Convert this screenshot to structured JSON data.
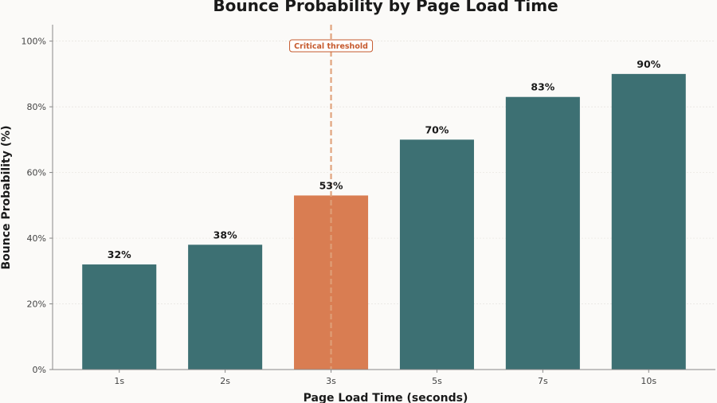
{
  "chart_data": {
    "type": "bar",
    "title": "Bounce Probability by Page Load Time",
    "xlabel": "Page Load Time (seconds)",
    "ylabel": "Bounce Probability (%)",
    "categories": [
      "1s",
      "2s",
      "3s",
      "5s",
      "7s",
      "10s"
    ],
    "values": [
      32,
      38,
      53,
      70,
      83,
      90
    ],
    "value_labels": [
      "32%",
      "38%",
      "53%",
      "70%",
      "83%",
      "90%"
    ],
    "highlight_category": "3s",
    "ylim": [
      0,
      105
    ],
    "yticks": [
      0,
      20,
      40,
      60,
      80,
      100
    ],
    "ytick_labels": [
      "0%",
      "20%",
      "40%",
      "60%",
      "80%",
      "100%"
    ],
    "grid": "horizontal",
    "annotation": {
      "text": "Critical threshold",
      "at_category": "3s",
      "style": "dashed vertical line"
    },
    "colors": {
      "bar": "#3d7073",
      "highlight": "#d97d52",
      "threshold_line": "#e0a078",
      "annotation_text": "#c65a2e"
    }
  }
}
